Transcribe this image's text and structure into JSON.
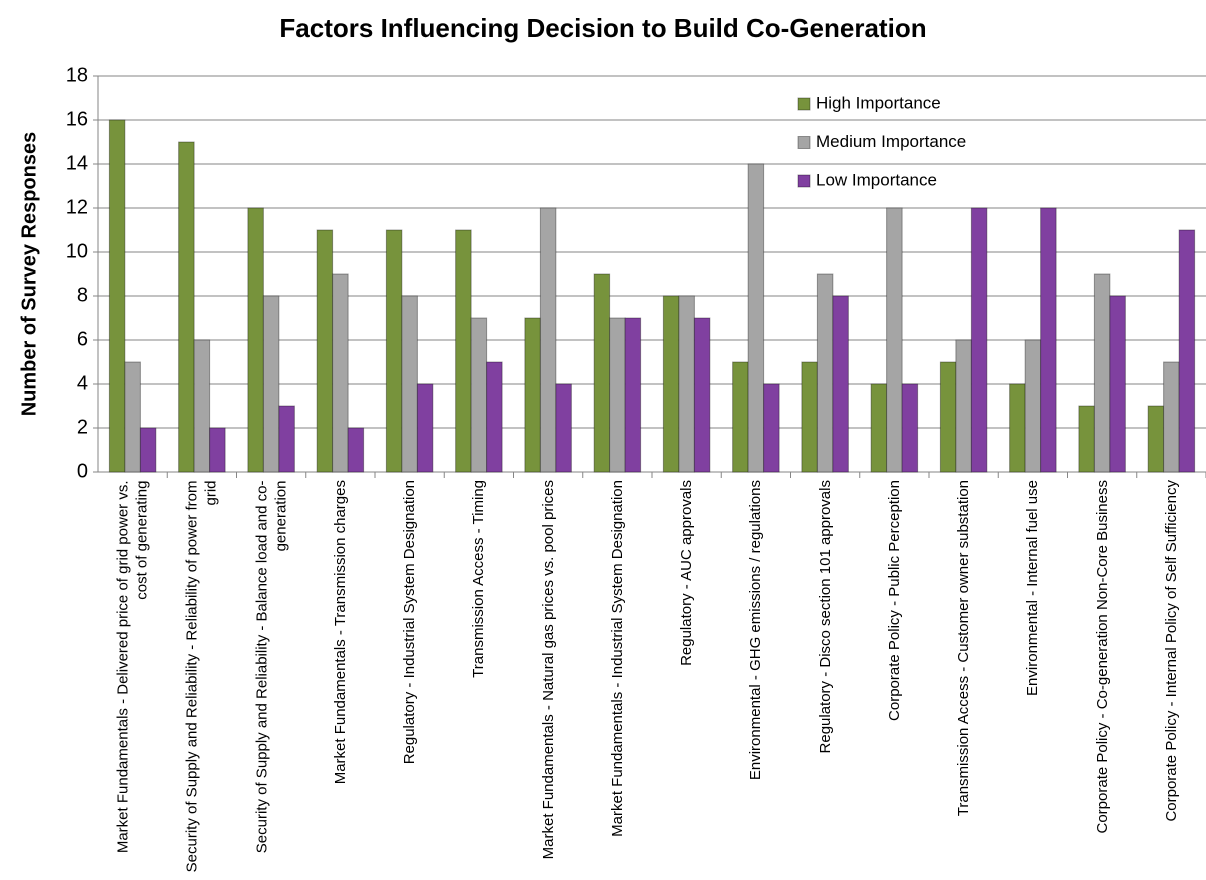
{
  "chart_data": {
    "type": "bar",
    "title": "Factors Influencing Decision to Build Co-Generation",
    "y_label": "Number of Survey Responses",
    "categories": [
      "Market Fundamentals - Delivered price of grid power vs. cost of generating",
      "Security of Supply and Reliability - Reliability of power from grid",
      "Security of Supply and Reliability - Balance load and co-generation",
      "Market Fundamentals - Transmission charges",
      "Regulatory - Industrial System Designation",
      "Transmission Access - Timing",
      "Market Fundamentals - Natural gas prices vs. pool prices",
      "Market Fundamentals - Industrial System Designation",
      "Regulatory - AUC approvals",
      "Environmental - GHG emissions / regulations",
      "Regulatory - Disco section 101 approvals",
      "Corporate Policy - Public Perception",
      "Transmission Access - Customer owner substation",
      "Environmental - Internal fuel use",
      "Corporate Policy - Co-generation Non-Core Business",
      "Corporate Policy - Internal Policy of Self Sufficiency"
    ],
    "series": [
      {
        "name": "High Importance",
        "color": "#77933c",
        "values": [
          16,
          15,
          12,
          11,
          11,
          11,
          7,
          9,
          8,
          5,
          5,
          4,
          5,
          4,
          3,
          3
        ]
      },
      {
        "name": "Medium Importance",
        "color": "#a5a5a5",
        "values": [
          5,
          6,
          8,
          9,
          8,
          7,
          12,
          7,
          8,
          14,
          9,
          12,
          6,
          6,
          9,
          5
        ]
      },
      {
        "name": "Low Importance",
        "color": "#8040a0",
        "values": [
          2,
          2,
          3,
          2,
          4,
          5,
          4,
          7,
          7,
          4,
          8,
          4,
          12,
          12,
          8,
          11
        ]
      }
    ],
    "ylim": [
      0,
      18
    ],
    "yticks": [
      0,
      2,
      4,
      6,
      8,
      10,
      12,
      14,
      16,
      18
    ],
    "grid": true,
    "legend": "top-right"
  }
}
